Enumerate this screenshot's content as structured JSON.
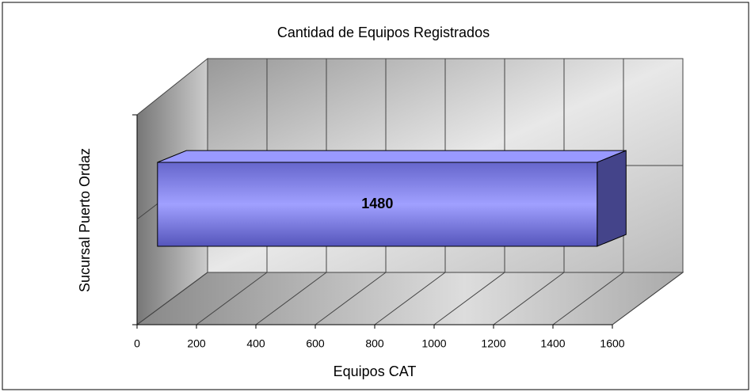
{
  "chart_data": {
    "type": "bar3d",
    "orientation": "horizontal",
    "title": "Cantidad de Equipos Registrados",
    "xlabel": "Equipos CAT",
    "ylabel": "Sucursal Puerto Ordaz",
    "categories": [
      null
    ],
    "values": [
      1480
    ],
    "color": "#9999ff",
    "xlim": [
      0,
      1600
    ],
    "xticks": [
      0,
      200,
      400,
      600,
      800,
      1000,
      1200,
      1400,
      1600
    ],
    "grid": true,
    "data_labels": true
  }
}
